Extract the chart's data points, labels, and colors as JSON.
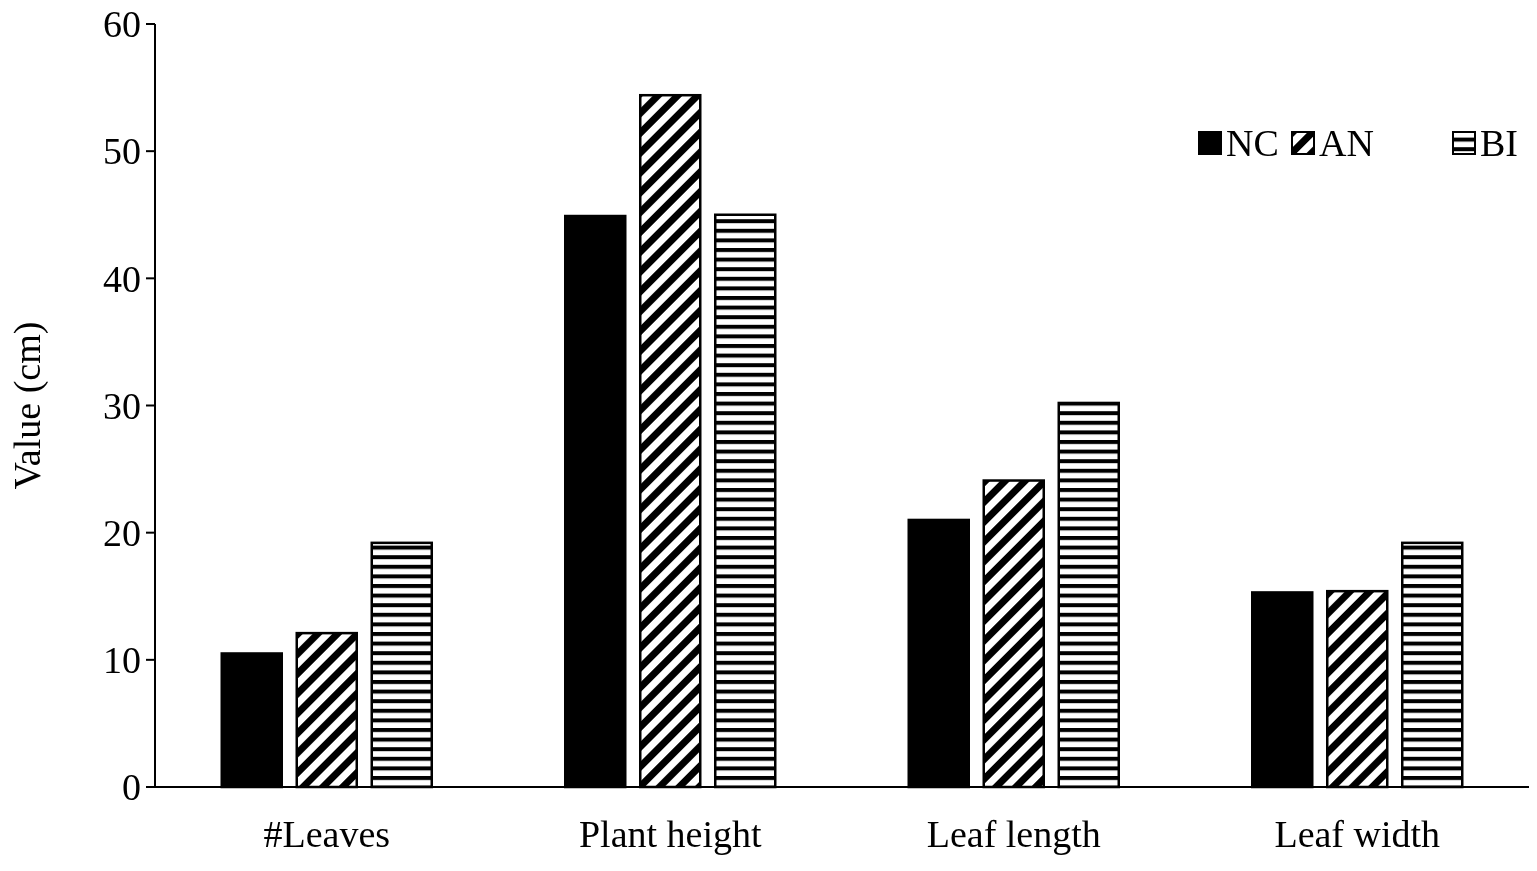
{
  "chart_data": {
    "type": "bar",
    "ylabel": "Value (cm)",
    "categories": [
      "#Leaves",
      "Plant height",
      "Leaf length",
      "Leaf width"
    ],
    "series": [
      {
        "name": "NC",
        "color": "#000000",
        "values": [
          10.5,
          44.9,
          21.0,
          15.3
        ]
      },
      {
        "name": "AN",
        "color": "#000000",
        "values": [
          12.1,
          54.4,
          24.1,
          15.4
        ]
      },
      {
        "name": "BI",
        "color": "#000000",
        "values": [
          19.2,
          45.0,
          30.2,
          19.2
        ]
      }
    ],
    "ylim": [
      0,
      60
    ],
    "yticks": [
      0,
      10,
      20,
      30,
      40,
      50,
      60
    ],
    "grid": false,
    "legend": "top right"
  }
}
